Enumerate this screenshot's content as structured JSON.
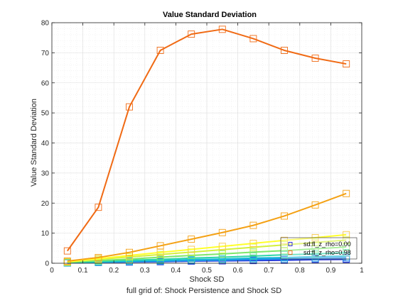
{
  "chart_data": {
    "type": "line",
    "title": "Value Standard Deviation",
    "xlabel": "Shock SD",
    "ylabel": "Value Standard Deviation",
    "caption": "full grid of: Shock Persistence and Shock SD",
    "xlim": [
      0,
      1
    ],
    "ylim": [
      0,
      80
    ],
    "xticks": [
      0,
      0.1,
      0.2,
      0.3,
      0.4,
      0.5,
      0.6,
      0.7,
      0.8,
      0.9,
      1
    ],
    "xtick_labels": [
      "0",
      "0.1",
      "0.2",
      "0.3",
      "0.4",
      "0.5",
      "0.6",
      "0.7",
      "0.8",
      "0.9",
      "1"
    ],
    "yticks": [
      0,
      10,
      20,
      30,
      40,
      50,
      60,
      70,
      80
    ],
    "ytick_labels": [
      "0",
      "10",
      "20",
      "30",
      "40",
      "50",
      "60",
      "70",
      "80"
    ],
    "grid": true,
    "legend_position": "bottom-right",
    "x": [
      0.05,
      0.15,
      0.25,
      0.35,
      0.45,
      0.55,
      0.65,
      0.75,
      0.85,
      0.95
    ],
    "series": [
      {
        "name": "sd:fl_z_rho=0.00",
        "color": "#1f1fd6",
        "marker_color": "#1f1fd6",
        "in_legend": true,
        "values": [
          0.1,
          0.3,
          0.4,
          0.5,
          0.7,
          0.8,
          0.9,
          1.0,
          1.2,
          1.3
        ]
      },
      {
        "color": "#2d5fe0",
        "marker_color": "#2d5fe0",
        "in_legend": false,
        "values": [
          0.1,
          0.3,
          0.5,
          0.6,
          0.8,
          0.9,
          1.1,
          1.2,
          1.4,
          1.5
        ]
      },
      {
        "color": "#1f8fe8",
        "marker_color": "#1f8fe8",
        "in_legend": false,
        "values": [
          0.1,
          0.3,
          0.5,
          0.7,
          0.9,
          1.1,
          1.3,
          1.5,
          1.7,
          1.9
        ]
      },
      {
        "color": "#18b8d8",
        "marker_color": "#18b8d8",
        "in_legend": false,
        "values": [
          0.2,
          0.4,
          0.7,
          0.9,
          1.2,
          1.4,
          1.7,
          1.9,
          2.2,
          2.4
        ]
      },
      {
        "color": "#2ed6a8",
        "marker_color": "#2ed6a8",
        "in_legend": false,
        "values": [
          0.2,
          0.6,
          1.0,
          1.3,
          1.7,
          2.0,
          2.4,
          2.8,
          3.1,
          3.5
        ]
      },
      {
        "color": "#7ee66a",
        "marker_color": "#7ee66a",
        "in_legend": false,
        "values": [
          0.3,
          0.9,
          1.4,
          2.0,
          2.6,
          3.1,
          3.7,
          4.2,
          4.8,
          5.4
        ]
      },
      {
        "color": "#d4f03c",
        "marker_color": "#d4f03c",
        "in_legend": false,
        "values": [
          0.4,
          1.3,
          2.1,
          2.9,
          3.7,
          4.5,
          5.3,
          6.1,
          6.9,
          7.7
        ]
      },
      {
        "color": "#ffff2a",
        "marker_color": "#f7c84a",
        "in_legend": false,
        "values": [
          0.5,
          1.5,
          2.6,
          3.6,
          4.6,
          5.6,
          6.6,
          7.6,
          8.5,
          9.5
        ]
      },
      {
        "color": "#f4a114",
        "marker_color": "#f4a114",
        "in_legend": false,
        "values": [
          0.7,
          1.9,
          3.6,
          5.8,
          8.0,
          10.2,
          12.6,
          15.7,
          19.4,
          23.2
        ]
      },
      {
        "name": "sd:fl_z_rho=0.98",
        "color": "#f06a14",
        "marker_color": "#f06a14",
        "in_legend": true,
        "values": [
          4.1,
          18.6,
          52.0,
          70.8,
          76.2,
          77.8,
          74.7,
          70.8,
          68.2,
          66.3
        ]
      }
    ]
  }
}
